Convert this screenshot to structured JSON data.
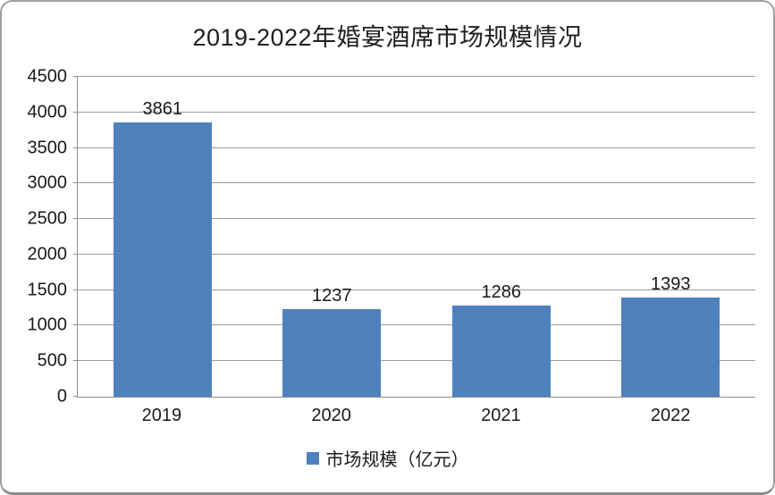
{
  "chart_data": {
    "type": "bar",
    "title": "2019-2022年婚宴酒席市场规模情况",
    "categories": [
      "2019",
      "2020",
      "2021",
      "2022"
    ],
    "series": [
      {
        "name": "市场规模（亿元）",
        "values": [
          3861,
          1237,
          1286,
          1393
        ]
      }
    ],
    "data_labels": [
      "3861",
      "1237",
      "1286",
      "1393"
    ],
    "ylim": [
      0,
      4500
    ],
    "ytick_step": 500,
    "yticks": [
      0,
      500,
      1000,
      1500,
      2000,
      2500,
      3000,
      3500,
      4000,
      4500
    ],
    "xlabel": "",
    "ylabel": "",
    "grid": true,
    "legend_position": "bottom",
    "bar_color": "#4F81BD",
    "gridline_color": "#9d9d9d",
    "axis_color": "#8e8e8e"
  }
}
